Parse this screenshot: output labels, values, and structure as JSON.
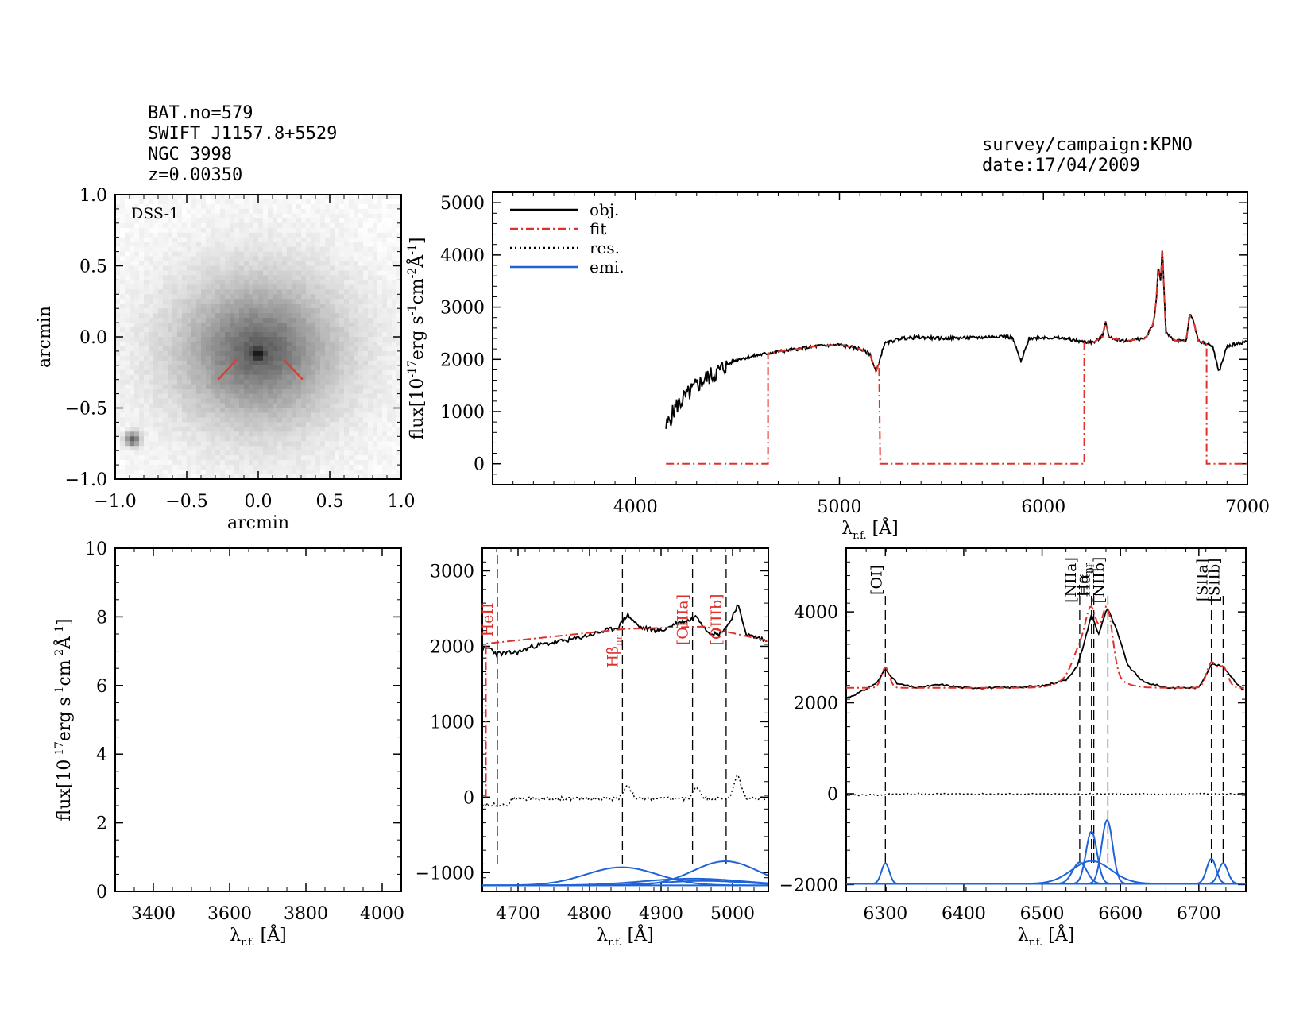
{
  "header": {
    "bat_no": "BAT.no=579",
    "swift_name": "SWIFT J1157.8+5529",
    "ngc_name": "NGC 3998",
    "redshift": "z=0.00350",
    "survey": "survey/campaign:KPNO",
    "date": "date:17/04/2009"
  },
  "colors": {
    "obj": "#000000",
    "fit": "#e0302a",
    "res": "#000000",
    "emi": "#1e64d8"
  },
  "chart_data": [
    {
      "id": "image",
      "type": "heatmap",
      "label": "DSS-1",
      "xlabel": "arcmin",
      "ylabel": "arcmin",
      "xlim": [
        -1.0,
        1.0
      ],
      "ylim": [
        -1.0,
        1.0
      ],
      "xticks": [
        "−1.0",
        "−0.5",
        "0.0",
        "0.5",
        "1.0"
      ],
      "yticks": [
        "−1.0",
        "−0.5",
        "0.0",
        "0.5",
        "1.0"
      ],
      "galaxy_center": [
        0.0,
        -0.1
      ],
      "star": [
        -0.88,
        -0.72
      ]
    },
    {
      "id": "full",
      "type": "line",
      "xlabel": "λ_r.f. [Å]",
      "ylabel": "flux[10^-17 erg s^-1 cm^-2 Å^-1]",
      "xlim": [
        3300,
        7000
      ],
      "ylim": [
        -400,
        5200
      ],
      "xticks": [
        "4000",
        "5000",
        "6000",
        "7000"
      ],
      "yticks": [
        "0",
        "1000",
        "2000",
        "3000",
        "4000",
        "5000"
      ],
      "legend": [
        "obj.",
        "fit",
        "res.",
        "emi."
      ],
      "legend_position": "top-left",
      "obj_anchors": [
        [
          4150,
          700
        ],
        [
          4200,
          1100
        ],
        [
          4250,
          1300
        ],
        [
          4300,
          1500
        ],
        [
          4350,
          1650
        ],
        [
          4400,
          1750
        ],
        [
          4450,
          1900
        ],
        [
          4500,
          2000
        ],
        [
          4600,
          2080
        ],
        [
          4700,
          2150
        ],
        [
          4800,
          2200
        ],
        [
          4900,
          2260
        ],
        [
          5000,
          2280
        ],
        [
          5100,
          2200
        ],
        [
          5150,
          2100
        ],
        [
          5180,
          1750
        ],
        [
          5220,
          2300
        ],
        [
          5300,
          2400
        ],
        [
          5400,
          2420
        ],
        [
          5500,
          2400
        ],
        [
          5600,
          2410
        ],
        [
          5700,
          2420
        ],
        [
          5800,
          2450
        ],
        [
          5850,
          2400
        ],
        [
          5890,
          1950
        ],
        [
          5930,
          2400
        ],
        [
          6000,
          2420
        ],
        [
          6100,
          2400
        ],
        [
          6200,
          2330
        ],
        [
          6250,
          2330
        ],
        [
          6290,
          2450
        ],
        [
          6305,
          2750
        ],
        [
          6320,
          2420
        ],
        [
          6400,
          2350
        ],
        [
          6500,
          2400
        ],
        [
          6540,
          2700
        ],
        [
          6555,
          3200
        ],
        [
          6563,
          3800
        ],
        [
          6575,
          3500
        ],
        [
          6583,
          4150
        ],
        [
          6600,
          2500
        ],
        [
          6650,
          2350
        ],
        [
          6700,
          2350
        ],
        [
          6716,
          2850
        ],
        [
          6731,
          2800
        ],
        [
          6760,
          2350
        ],
        [
          6800,
          2300
        ],
        [
          6830,
          2250
        ],
        [
          6860,
          1750
        ],
        [
          6900,
          2250
        ],
        [
          7000,
          2350
        ]
      ],
      "fit": {
        "segments": [
          {
            "from": 4150,
            "to": 4650,
            "level": 0
          },
          {
            "from": 4650,
            "to": 5200,
            "level": "obj"
          },
          {
            "from": 5200,
            "to": 6200,
            "level": 0
          },
          {
            "from": 6200,
            "to": 6800,
            "level": "obj"
          },
          {
            "from": 6800,
            "to": 7000,
            "level": 0
          }
        ]
      }
    },
    {
      "id": "blank",
      "type": "line",
      "xlabel": "λ_r.f. [Å]",
      "ylabel": "flux[10^-17 erg s^-1 cm^-2 Å^-1]",
      "xlim": [
        3300,
        4050
      ],
      "ylim": [
        0,
        10
      ],
      "xticks": [
        "3400",
        "3600",
        "3800",
        "4000"
      ],
      "yticks": [
        "0",
        "2",
        "4",
        "6",
        "8",
        "10"
      ]
    },
    {
      "id": "hbeta",
      "type": "line",
      "xlabel": "λ_r.f. [Å]",
      "xlim": [
        4650,
        5050
      ],
      "ylim": [
        -1250,
        3300
      ],
      "xticks": [
        "4700",
        "4800",
        "4900",
        "5000"
      ],
      "yticks": [
        "−1000",
        "0",
        "1000",
        "2000",
        "3000"
      ],
      "obj_anchors": [
        [
          4650,
          1950
        ],
        [
          4660,
          1980
        ],
        [
          4670,
          1900
        ],
        [
          4700,
          1920
        ],
        [
          4720,
          2000
        ],
        [
          4750,
          2050
        ],
        [
          4780,
          2100
        ],
        [
          4800,
          2150
        ],
        [
          4820,
          2200
        ],
        [
          4840,
          2250
        ],
        [
          4853,
          2420
        ],
        [
          4870,
          2250
        ],
        [
          4900,
          2200
        ],
        [
          4920,
          2300
        ],
        [
          4940,
          2350
        ],
        [
          4950,
          2400
        ],
        [
          4965,
          2200
        ],
        [
          4980,
          2150
        ],
        [
          4995,
          2300
        ],
        [
          5007,
          2550
        ],
        [
          5020,
          2150
        ],
        [
          5040,
          2100
        ],
        [
          5050,
          2050
        ]
      ],
      "fit_level": [
        [
          4650,
          2030
        ],
        [
          4850,
          2230
        ],
        [
          4960,
          2260
        ],
        [
          5050,
          2070
        ]
      ],
      "fit_drop_x": 4655,
      "res_bumps": [
        [
          4853,
          180
        ],
        [
          4950,
          150
        ],
        [
          5007,
          300
        ]
      ],
      "res_offset": -100,
      "emi_base": -1170,
      "gaussians": [
        {
          "center": 4845,
          "amp": 240,
          "sigma": 50
        },
        {
          "center": 4990,
          "amp": 320,
          "sigma": 45
        },
        {
          "center": 4945,
          "amp": 90,
          "sigma": 70
        },
        {
          "center": 4960,
          "amp": 60,
          "sigma": 60
        }
      ],
      "lines": [
        {
          "label": "HeII",
          "x": 4671
        },
        {
          "label": "Hβ_nr",
          "x": 4846
        },
        {
          "label": "[OIIIa]",
          "x": 4944
        },
        {
          "label": "[OIIIb]",
          "x": 4991
        }
      ]
    },
    {
      "id": "halpha",
      "type": "line",
      "xlabel": "λ_r.f. [Å]",
      "xlim": [
        6250,
        6760
      ],
      "ylim": [
        -2150,
        5400
      ],
      "xticks": [
        "6300",
        "6400",
        "6500",
        "6600",
        "6700"
      ],
      "yticks": [
        "−2000",
        "0",
        "2000",
        "4000"
      ],
      "obj_anchors": [
        [
          6250,
          2100
        ],
        [
          6270,
          2250
        ],
        [
          6290,
          2450
        ],
        [
          6300,
          2750
        ],
        [
          6315,
          2420
        ],
        [
          6340,
          2330
        ],
        [
          6370,
          2400
        ],
        [
          6400,
          2330
        ],
        [
          6450,
          2330
        ],
        [
          6500,
          2370
        ],
        [
          6530,
          2500
        ],
        [
          6545,
          2800
        ],
        [
          6555,
          3400
        ],
        [
          6563,
          3950
        ],
        [
          6572,
          3500
        ],
        [
          6583,
          4100
        ],
        [
          6595,
          3600
        ],
        [
          6610,
          2800
        ],
        [
          6630,
          2450
        ],
        [
          6660,
          2330
        ],
        [
          6700,
          2330
        ],
        [
          6716,
          2850
        ],
        [
          6731,
          2800
        ],
        [
          6745,
          2500
        ],
        [
          6755,
          2300
        ]
      ],
      "fit_level": [
        [
          6250,
          2330
        ],
        [
          6760,
          2330
        ]
      ],
      "res_offset": -30,
      "emi_base": -1980,
      "gaussians": [
        {
          "center": 6300,
          "amp": 450,
          "sigma": 5
        },
        {
          "center": 6548,
          "amp": 470,
          "sigma": 9
        },
        {
          "center": 6563,
          "amp": 1150,
          "sigma": 7
        },
        {
          "center": 6563,
          "amp": 500,
          "sigma": 25
        },
        {
          "center": 6583,
          "amp": 1400,
          "sigma": 7
        },
        {
          "center": 6716,
          "amp": 550,
          "sigma": 6
        },
        {
          "center": 6731,
          "amp": 450,
          "sigma": 6
        }
      ],
      "lines": [
        {
          "label": "[OI]",
          "x": 6300
        },
        {
          "label": "[NIIa]",
          "x": 6548
        },
        {
          "label": "Hα_nr",
          "x": 6563
        },
        {
          "label": "Hα_br",
          "x": 6566
        },
        {
          "label": "[NIIb]",
          "x": 6584
        },
        {
          "label": "[SIIa]",
          "x": 6716
        },
        {
          "label": "[SIIb]",
          "x": 6731
        }
      ]
    }
  ]
}
